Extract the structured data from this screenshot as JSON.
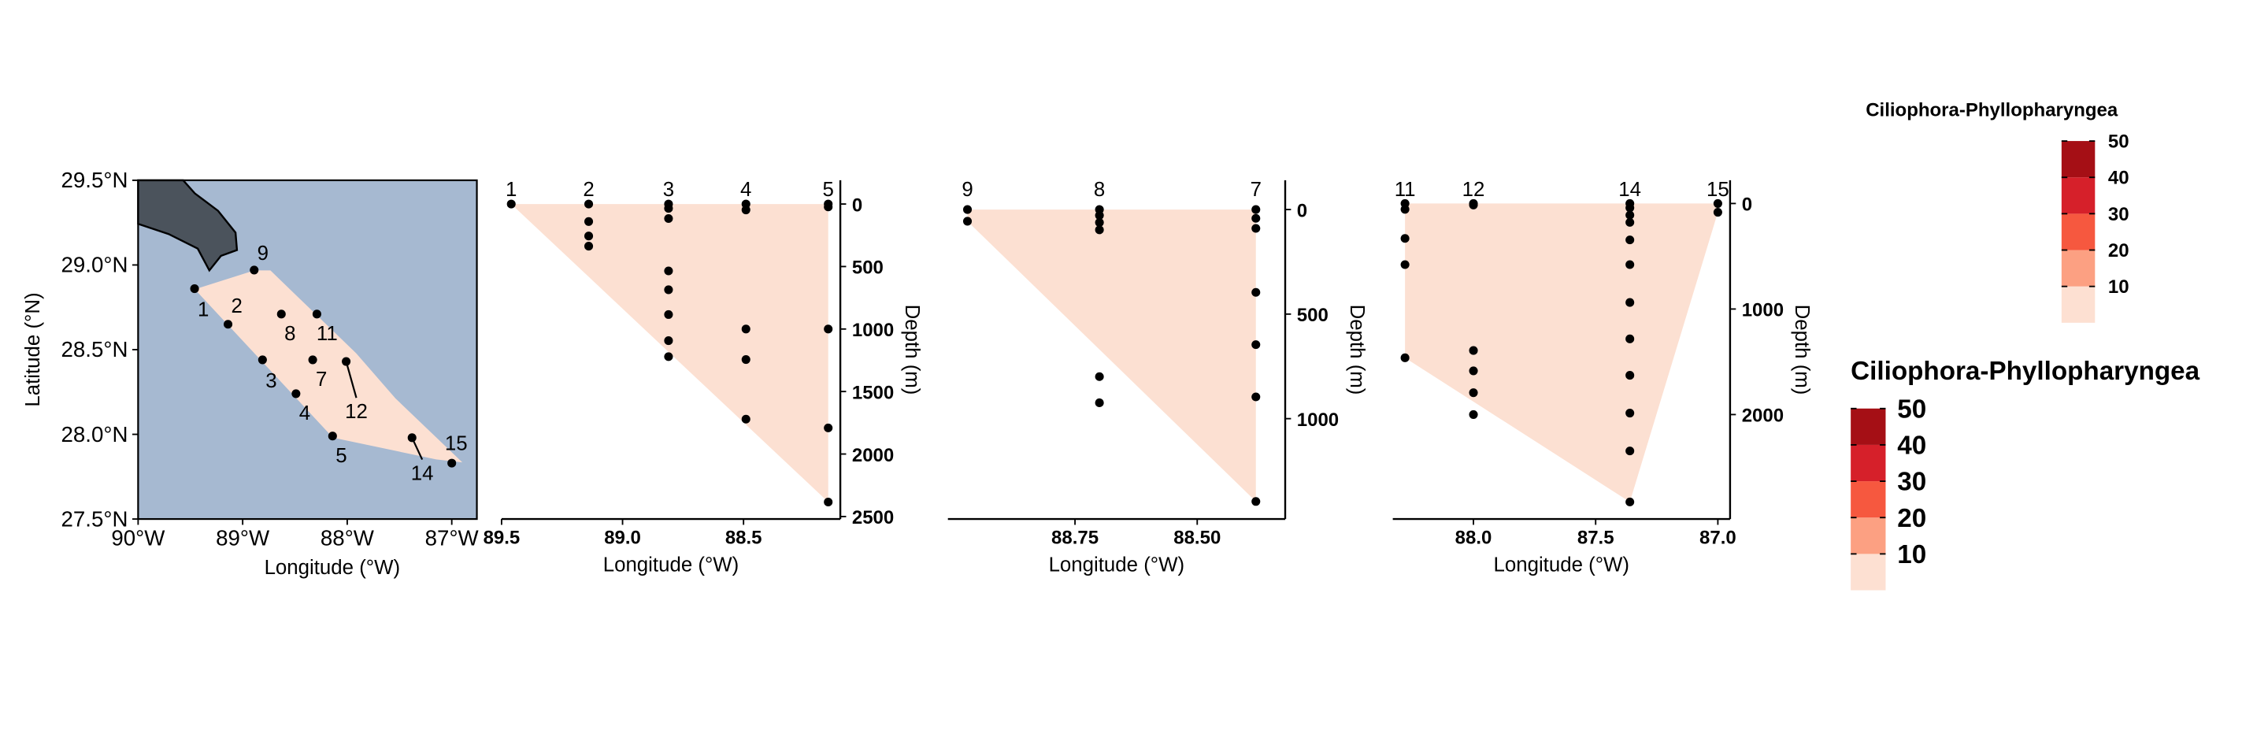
{
  "chart_data": [
    {
      "type": "map",
      "xlabel": "Longitude (°W)",
      "ylabel": "Latitude (°N)",
      "xlim": [
        -90,
        -86.76
      ],
      "ylim": [
        27.5,
        29.5
      ],
      "xticks": [
        {
          "value": -90,
          "label": "90°W"
        },
        {
          "value": -89,
          "label": "89°W"
        },
        {
          "value": -88,
          "label": "88°W"
        },
        {
          "value": -87,
          "label": "87°W"
        }
      ],
      "yticks": [
        {
          "value": 27.5,
          "label": "27.5°N"
        },
        {
          "value": 28,
          "label": "28.0°N"
        },
        {
          "value": 28.5,
          "label": "28.5°N"
        },
        {
          "value": 29,
          "label": "29.0°N"
        },
        {
          "value": 29.5,
          "label": "29.5°N"
        }
      ],
      "labels": [
        "1",
        "2",
        "3",
        "4",
        "5",
        "7",
        "8",
        "9",
        "11",
        "12",
        "14",
        "15"
      ],
      "x": [
        -89.46,
        -89.14,
        -88.81,
        -88.49,
        -88.14,
        -88.33,
        -88.63,
        -88.89,
        -88.29,
        -88.01,
        -87.38,
        -87.0
      ],
      "y": [
        28.86,
        28.65,
        28.44,
        28.24,
        27.99,
        28.44,
        28.71,
        28.97,
        28.71,
        28.43,
        27.98,
        27.83
      ],
      "color": "#000000",
      "sea_color": "#a6b9d1",
      "land_color": "#4b535c",
      "fill_color": "#fce0d2"
    },
    {
      "type": "section",
      "xlabel": "Longitude (°W)",
      "ylabel": "Depth (m)",
      "xlim": [
        89.5,
        88.1
      ],
      "ylim": [
        2520,
        -190
      ],
      "xticks": [
        89.5,
        {
          "value": 89,
          "label": "89.0"
        },
        88.5
      ],
      "yticks": [
        0,
        500,
        1000,
        1500,
        2000,
        2500
      ],
      "labels": [
        "1",
        "2",
        "3",
        "4",
        "5"
      ],
      "x": [
        89.46,
        89.14,
        88.81,
        88.49,
        88.15
      ],
      "depths": [
        [
          0
        ],
        [
          0,
          140,
          256,
          337
        ],
        [
          0,
          35,
          116,
          535,
          686,
          884,
          1093,
          1221
        ],
        [
          0,
          47,
          1000,
          1244,
          1721
        ],
        [
          0,
          23,
          1000,
          1791,
          2384
        ]
      ],
      "color": "#000000",
      "fill_color": "#fce0d2"
    },
    {
      "type": "section",
      "xlabel": "Longitude (°W)",
      "ylabel": "Depth (m)",
      "xlim": [
        89.01,
        88.32
      ],
      "ylim": [
        1480,
        -140
      ],
      "xticks": [
        88.75,
        {
          "value": 88.5,
          "label": "88.50"
        }
      ],
      "yticks": [
        0,
        500,
        1000
      ],
      "labels": [
        "9",
        "8",
        "7"
      ],
      "x": [
        88.97,
        88.7,
        88.38
      ],
      "depths": [
        [
          0,
          56
        ],
        [
          0,
          28,
          62,
          97,
          799,
          924
        ],
        [
          0,
          42,
          90,
          396,
          646,
          896,
          1396
        ]
      ],
      "color": "#000000",
      "fill_color": "#fce0d2"
    },
    {
      "type": "section",
      "xlabel": "Longitude (°W)",
      "ylabel": "Depth (m)",
      "xlim": [
        88.33,
        86.95
      ],
      "ylim": [
        2990,
        -220
      ],
      "xticks": [
        {
          "value": 88,
          "label": "88.0"
        },
        87.5,
        {
          "value": 87,
          "label": "87.0"
        }
      ],
      "yticks": [
        0,
        1000,
        2000
      ],
      "labels": [
        "11",
        "12",
        "14",
        "15"
      ],
      "x": [
        88.28,
        88.0,
        87.36,
        87.0
      ],
      "depths": [
        [
          0,
          55,
          331,
          579,
          1462
        ],
        [
          0,
          14,
          1393,
          1586,
          1793,
          2000
        ],
        [
          0,
          41,
          110,
          179,
          345,
          579,
          938,
          1283,
          1628,
          1986,
          2345,
          2828
        ],
        [
          0,
          83
        ]
      ],
      "color": "#000000",
      "fill_color": "#fce0d2"
    },
    {
      "type": "legend",
      "title": "Ciliophora-Phyllopharyngea",
      "lim": [
        0,
        50
      ],
      "breaks": [
        10,
        20,
        30,
        40,
        50
      ],
      "colors": [
        "#fde0d2",
        "#fca082",
        "#f6583f",
        "#d6202a",
        "#a50f15"
      ]
    },
    {
      "type": "legend",
      "title": "Ciliophora-Phyllopharyngea",
      "lim": [
        0,
        50
      ],
      "breaks": [
        10,
        20,
        30,
        40,
        50
      ],
      "colors": [
        "#fde0d2",
        "#fca082",
        "#f6583f",
        "#d6202a",
        "#a50f15"
      ]
    }
  ]
}
